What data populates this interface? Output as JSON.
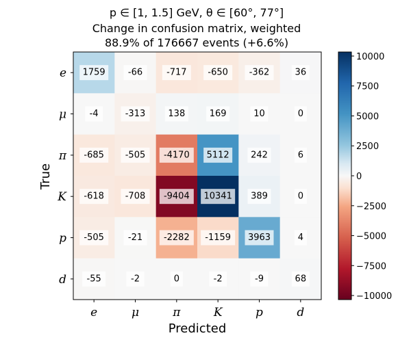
{
  "chart_data": {
    "type": "heatmap",
    "title_lines": [
      "p ∈ [1, 1.5] GeV, θ ∈ [60°, 77°]",
      "Change in confusion matrix, weighted",
      "88.9% of 176667 events (+6.6%)"
    ],
    "xlabel": "Predicted",
    "ylabel": "True",
    "x_categories": [
      "e",
      "μ",
      "π",
      "K",
      "p",
      "d"
    ],
    "y_categories": [
      "e",
      "μ",
      "π",
      "K",
      "p",
      "d"
    ],
    "values": [
      [
        1759,
        -66,
        -717,
        -650,
        -362,
        36
      ],
      [
        -4,
        -313,
        138,
        169,
        10,
        0
      ],
      [
        -685,
        -505,
        -4170,
        5112,
        242,
        6
      ],
      [
        -618,
        -708,
        -9404,
        10341,
        389,
        0
      ],
      [
        -505,
        -21,
        -2282,
        -1159,
        3963,
        4
      ],
      [
        -55,
        -2,
        0,
        -2,
        -9,
        68
      ]
    ],
    "colorbar": {
      "colormap": "RdBu",
      "vmin": -10341,
      "vmax": 10341,
      "ticks": [
        10000,
        7500,
        5000,
        2500,
        0,
        -2500,
        -5000,
        -7500,
        -10000
      ],
      "tick_labels": [
        "10000",
        "7500",
        "5000",
        "2500",
        "0",
        "−2500",
        "−5000",
        "−7500",
        "−10000"
      ]
    },
    "grid": false
  }
}
